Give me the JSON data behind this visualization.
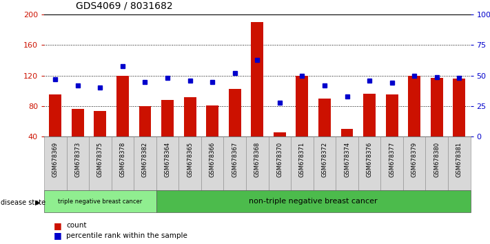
{
  "title": "GDS4069 / 8031682",
  "samples": [
    "GSM678369",
    "GSM678373",
    "GSM678375",
    "GSM678378",
    "GSM678382",
    "GSM678364",
    "GSM678365",
    "GSM678366",
    "GSM678367",
    "GSM678368",
    "GSM678370",
    "GSM678371",
    "GSM678372",
    "GSM678374",
    "GSM678376",
    "GSM678377",
    "GSM678379",
    "GSM678380",
    "GSM678381"
  ],
  "counts": [
    95,
    76,
    74,
    120,
    80,
    88,
    92,
    81,
    103,
    190,
    46,
    120,
    90,
    50,
    96,
    95,
    120,
    117,
    116
  ],
  "percentiles": [
    47,
    42,
    40,
    58,
    45,
    48,
    46,
    45,
    52,
    63,
    28,
    50,
    42,
    33,
    46,
    44,
    50,
    49,
    48
  ],
  "group1_label": "triple negative breast cancer",
  "group2_label": "non-triple negative breast cancer",
  "group1_count": 5,
  "group2_count": 14,
  "ylim_left": [
    40,
    200
  ],
  "ylim_right": [
    0,
    100
  ],
  "yticks_left": [
    40,
    80,
    120,
    160,
    200
  ],
  "yticks_right": [
    0,
    25,
    50,
    75,
    100
  ],
  "bar_color": "#cc1100",
  "marker_color": "#0000cc",
  "bg_color": "#ffffff",
  "legend_count_label": "count",
  "legend_pct_label": "percentile rank within the sample",
  "left_tick_color": "#cc1100",
  "right_tick_color": "#0000cc",
  "group1_color": "#90ee90",
  "group2_color": "#4cbb4c"
}
